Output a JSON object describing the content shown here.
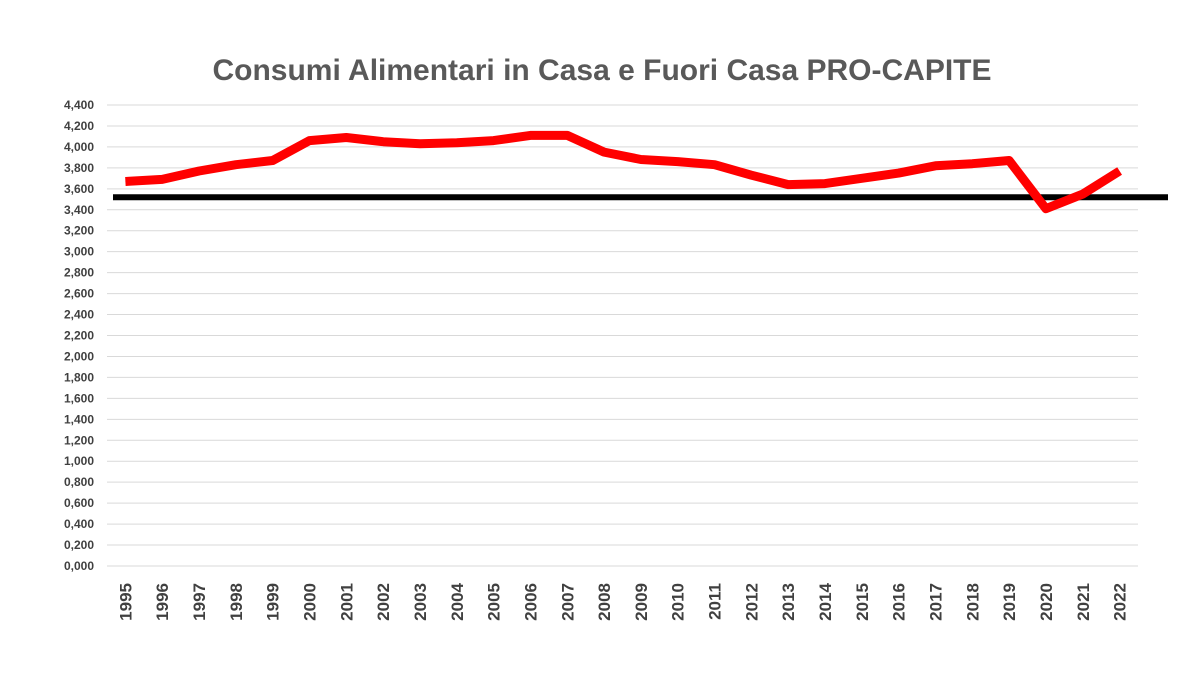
{
  "chart_data": {
    "type": "line",
    "title": "Consumi Alimentari in Casa e Fuori Casa  PRO-CAPITE",
    "xlabel": "",
    "ylabel": "",
    "ylim": [
      0,
      4.4
    ],
    "grid": true,
    "legend": "none",
    "y_ticks": [
      "0,000",
      "0,200",
      "0,400",
      "0,600",
      "0,800",
      "1,000",
      "1,200",
      "1,400",
      "1,600",
      "1,800",
      "2,000",
      "2,200",
      "2,400",
      "2,600",
      "2,800",
      "3,000",
      "3,200",
      "3,400",
      "3,600",
      "3,800",
      "4,000",
      "4,200",
      "4,400"
    ],
    "categories": [
      "1995",
      "1996",
      "1997",
      "1998",
      "1999",
      "2000",
      "2001",
      "2002",
      "2003",
      "2004",
      "2005",
      "2006",
      "2007",
      "2008",
      "2009",
      "2010",
      "2011",
      "2012",
      "2013",
      "2014",
      "2015",
      "2016",
      "2017",
      "2018",
      "2019",
      "2020",
      "2021",
      "2022"
    ],
    "series": [
      {
        "color": "#ff0000",
        "values": [
          3.67,
          3.69,
          3.77,
          3.83,
          3.87,
          4.06,
          4.09,
          4.05,
          4.03,
          4.04,
          4.06,
          4.11,
          4.11,
          3.95,
          3.88,
          3.86,
          3.83,
          3.73,
          3.64,
          3.65,
          3.7,
          3.75,
          3.82,
          3.84,
          3.87,
          3.41,
          3.55,
          3.77
        ]
      }
    ],
    "reference_line": {
      "value": 3.52,
      "color": "#000000"
    }
  }
}
